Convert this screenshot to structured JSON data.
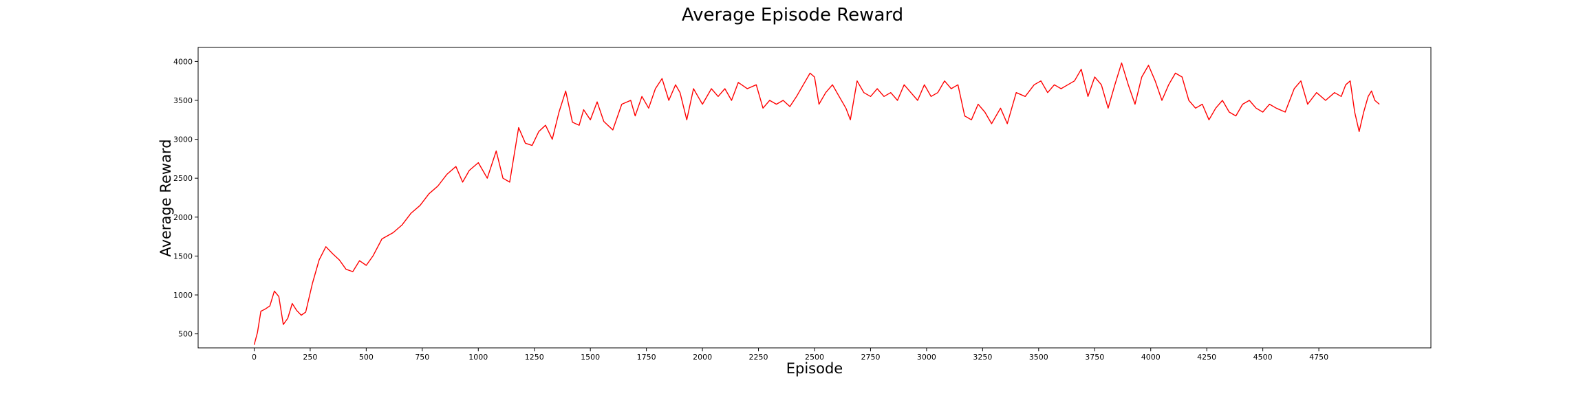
{
  "chart_data": {
    "type": "line",
    "title": "Average Episode Reward",
    "xlabel": "Episode",
    "ylabel": "Average Reward",
    "xlim": [
      -250,
      5250
    ],
    "ylim": [
      320,
      4180
    ],
    "x_ticks": [
      0,
      250,
      500,
      750,
      1000,
      1250,
      1500,
      1750,
      2000,
      2250,
      2500,
      2750,
      3000,
      3250,
      3500,
      3750,
      4000,
      4250,
      4500,
      4750
    ],
    "y_ticks": [
      500,
      1000,
      1500,
      2000,
      2500,
      3000,
      3500,
      4000
    ],
    "grid": false,
    "legend": "none",
    "series": [
      {
        "color": "#ff0000",
        "points": [
          [
            0,
            360
          ],
          [
            15,
            520
          ],
          [
            30,
            790
          ],
          [
            50,
            820
          ],
          [
            70,
            860
          ],
          [
            90,
            1050
          ],
          [
            110,
            980
          ],
          [
            130,
            620
          ],
          [
            150,
            700
          ],
          [
            170,
            890
          ],
          [
            190,
            800
          ],
          [
            210,
            740
          ],
          [
            230,
            780
          ],
          [
            260,
            1150
          ],
          [
            290,
            1450
          ],
          [
            320,
            1620
          ],
          [
            350,
            1530
          ],
          [
            380,
            1450
          ],
          [
            410,
            1330
          ],
          [
            440,
            1300
          ],
          [
            470,
            1440
          ],
          [
            500,
            1380
          ],
          [
            530,
            1500
          ],
          [
            570,
            1720
          ],
          [
            620,
            1800
          ],
          [
            660,
            1900
          ],
          [
            700,
            2050
          ],
          [
            740,
            2150
          ],
          [
            780,
            2300
          ],
          [
            820,
            2400
          ],
          [
            860,
            2550
          ],
          [
            900,
            2650
          ],
          [
            930,
            2450
          ],
          [
            960,
            2600
          ],
          [
            1000,
            2700
          ],
          [
            1040,
            2500
          ],
          [
            1080,
            2850
          ],
          [
            1110,
            2500
          ],
          [
            1140,
            2450
          ],
          [
            1180,
            3150
          ],
          [
            1210,
            2950
          ],
          [
            1240,
            2920
          ],
          [
            1270,
            3100
          ],
          [
            1300,
            3180
          ],
          [
            1330,
            3000
          ],
          [
            1360,
            3350
          ],
          [
            1390,
            3620
          ],
          [
            1420,
            3220
          ],
          [
            1450,
            3180
          ],
          [
            1470,
            3380
          ],
          [
            1500,
            3250
          ],
          [
            1530,
            3480
          ],
          [
            1560,
            3230
          ],
          [
            1600,
            3120
          ],
          [
            1640,
            3450
          ],
          [
            1680,
            3500
          ],
          [
            1700,
            3300
          ],
          [
            1730,
            3550
          ],
          [
            1760,
            3400
          ],
          [
            1790,
            3650
          ],
          [
            1820,
            3780
          ],
          [
            1850,
            3500
          ],
          [
            1880,
            3700
          ],
          [
            1900,
            3600
          ],
          [
            1930,
            3250
          ],
          [
            1960,
            3650
          ],
          [
            2000,
            3450
          ],
          [
            2040,
            3650
          ],
          [
            2070,
            3550
          ],
          [
            2100,
            3650
          ],
          [
            2130,
            3500
          ],
          [
            2160,
            3730
          ],
          [
            2200,
            3650
          ],
          [
            2240,
            3700
          ],
          [
            2270,
            3400
          ],
          [
            2300,
            3500
          ],
          [
            2330,
            3450
          ],
          [
            2360,
            3500
          ],
          [
            2390,
            3420
          ],
          [
            2420,
            3550
          ],
          [
            2450,
            3700
          ],
          [
            2480,
            3850
          ],
          [
            2500,
            3800
          ],
          [
            2520,
            3450
          ],
          [
            2550,
            3600
          ],
          [
            2580,
            3700
          ],
          [
            2610,
            3550
          ],
          [
            2640,
            3400
          ],
          [
            2660,
            3250
          ],
          [
            2690,
            3750
          ],
          [
            2720,
            3600
          ],
          [
            2750,
            3550
          ],
          [
            2780,
            3650
          ],
          [
            2810,
            3550
          ],
          [
            2840,
            3600
          ],
          [
            2870,
            3500
          ],
          [
            2900,
            3700
          ],
          [
            2930,
            3600
          ],
          [
            2960,
            3500
          ],
          [
            2990,
            3700
          ],
          [
            3020,
            3550
          ],
          [
            3050,
            3600
          ],
          [
            3080,
            3750
          ],
          [
            3110,
            3650
          ],
          [
            3140,
            3700
          ],
          [
            3170,
            3300
          ],
          [
            3200,
            3250
          ],
          [
            3230,
            3450
          ],
          [
            3260,
            3350
          ],
          [
            3290,
            3200
          ],
          [
            3330,
            3400
          ],
          [
            3360,
            3200
          ],
          [
            3400,
            3600
          ],
          [
            3440,
            3550
          ],
          [
            3480,
            3700
          ],
          [
            3510,
            3750
          ],
          [
            3540,
            3600
          ],
          [
            3570,
            3700
          ],
          [
            3600,
            3650
          ],
          [
            3630,
            3700
          ],
          [
            3660,
            3750
          ],
          [
            3690,
            3900
          ],
          [
            3720,
            3550
          ],
          [
            3750,
            3800
          ],
          [
            3780,
            3700
          ],
          [
            3810,
            3400
          ],
          [
            3840,
            3700
          ],
          [
            3870,
            3980
          ],
          [
            3900,
            3700
          ],
          [
            3930,
            3450
          ],
          [
            3960,
            3800
          ],
          [
            3990,
            3950
          ],
          [
            4020,
            3750
          ],
          [
            4050,
            3500
          ],
          [
            4080,
            3700
          ],
          [
            4110,
            3850
          ],
          [
            4140,
            3800
          ],
          [
            4170,
            3500
          ],
          [
            4200,
            3400
          ],
          [
            4230,
            3450
          ],
          [
            4260,
            3250
          ],
          [
            4290,
            3400
          ],
          [
            4320,
            3500
          ],
          [
            4350,
            3350
          ],
          [
            4380,
            3300
          ],
          [
            4410,
            3450
          ],
          [
            4440,
            3500
          ],
          [
            4470,
            3400
          ],
          [
            4500,
            3350
          ],
          [
            4530,
            3450
          ],
          [
            4560,
            3400
          ],
          [
            4600,
            3350
          ],
          [
            4640,
            3650
          ],
          [
            4670,
            3750
          ],
          [
            4700,
            3450
          ],
          [
            4740,
            3600
          ],
          [
            4780,
            3500
          ],
          [
            4820,
            3600
          ],
          [
            4850,
            3550
          ],
          [
            4870,
            3700
          ],
          [
            4890,
            3750
          ],
          [
            4910,
            3350
          ],
          [
            4930,
            3100
          ],
          [
            4950,
            3350
          ],
          [
            4970,
            3550
          ],
          [
            4985,
            3620
          ],
          [
            5000,
            3500
          ],
          [
            5020,
            3450
          ]
        ]
      }
    ]
  }
}
